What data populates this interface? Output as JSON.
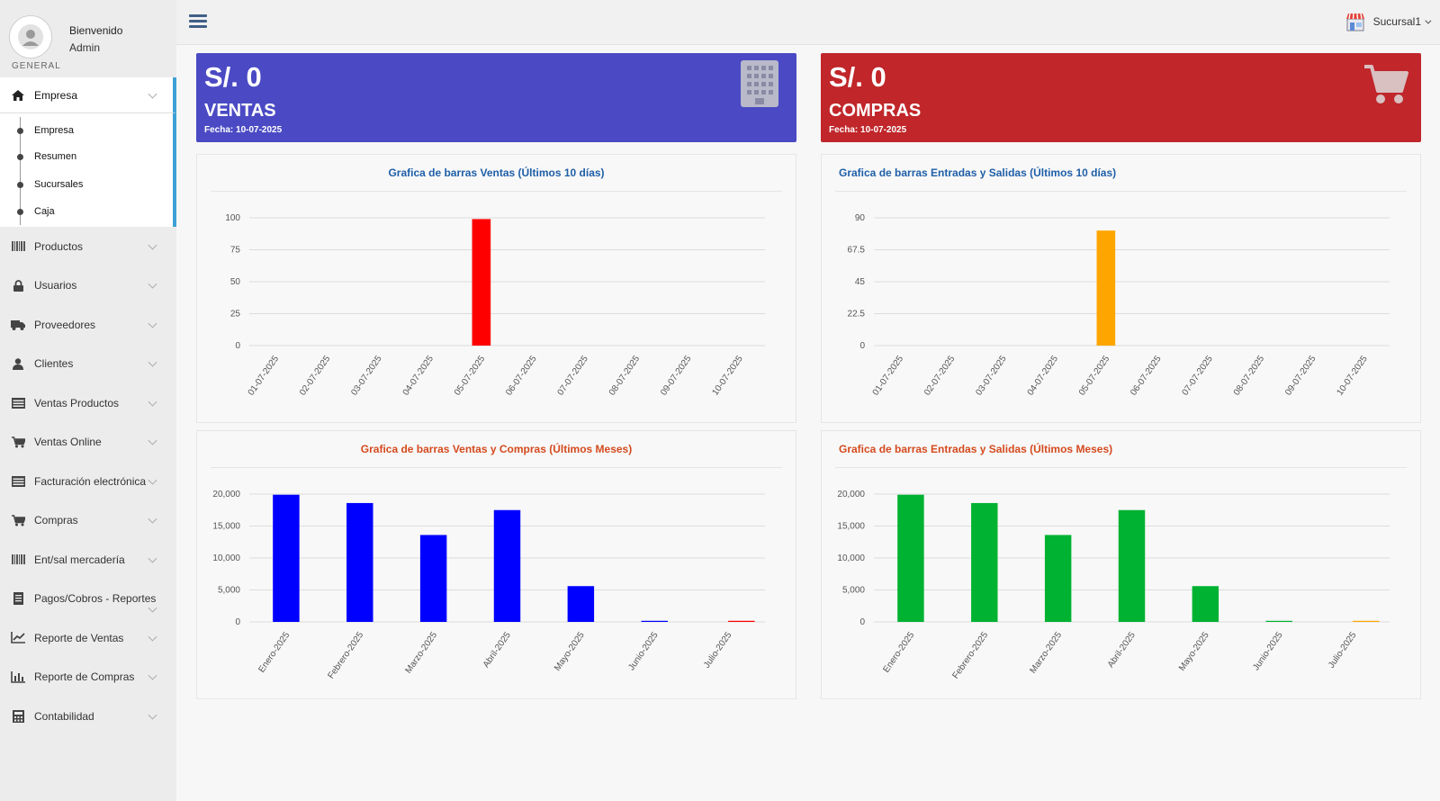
{
  "sidebar": {
    "welcome": "Bienvenido",
    "username": "Admin",
    "section_label": "GENERAL",
    "active_item": {
      "label": "Empresa",
      "icon": "home-icon"
    },
    "submenu": [
      "Empresa",
      "Resumen",
      "Sucursales",
      "Caja"
    ],
    "items": [
      {
        "label": "Productos",
        "icon": "barcode-icon"
      },
      {
        "label": "Usuarios",
        "icon": "lock-icon"
      },
      {
        "label": "Proveedores",
        "icon": "truck-icon"
      },
      {
        "label": "Clientes",
        "icon": "user-icon"
      },
      {
        "label": "Ventas Productos",
        "icon": "list-icon"
      },
      {
        "label": "Ventas Online",
        "icon": "cart-icon"
      },
      {
        "label": "Facturación electrónica",
        "icon": "list-icon"
      },
      {
        "label": "Compras",
        "icon": "cart-icon"
      },
      {
        "label": "Ent/sal mercadería",
        "icon": "barcode-icon"
      },
      {
        "label": "Pagos/Cobros - Reportes",
        "icon": "document-icon"
      },
      {
        "label": "Reporte de Ventas",
        "icon": "line-chart-icon"
      },
      {
        "label": "Reporte de Compras",
        "icon": "bar-chart-icon"
      },
      {
        "label": "Contabilidad",
        "icon": "calculator-icon"
      }
    ]
  },
  "header": {
    "branch": "Sucursal1",
    "branch_icon": "store-icon",
    "menu_icon": "hamburger-icon"
  },
  "stats": {
    "ventas": {
      "amount": "S/. 0",
      "label": "VENTAS",
      "date": "Fecha: 10-07-2025",
      "icon": "building-icon",
      "color": "#4b4ac4"
    },
    "compras": {
      "amount": "S/. 0",
      "label": "COMPRAS",
      "date": "Fecha: 10-07-2025",
      "icon": "cart-icon",
      "color": "#c0262a"
    }
  },
  "chart_data": [
    {
      "type": "bar",
      "title": "Grafica de barras Ventas (Últimos 10 días)",
      "categories": [
        "01-07-2025",
        "02-07-2025",
        "03-07-2025",
        "04-07-2025",
        "05-07-2025",
        "06-07-2025",
        "07-07-2025",
        "08-07-2025",
        "09-07-2025",
        "10-07-2025"
      ],
      "series": [
        {
          "values": [
            0,
            0,
            0,
            0,
            99,
            0,
            0,
            0,
            0,
            0
          ],
          "color": "#ff0000"
        }
      ],
      "ylim": [
        0,
        100
      ],
      "yticks": [
        "0",
        "25",
        "50",
        "75",
        "100"
      ],
      "grid": true
    },
    {
      "type": "bar",
      "title": "Grafica de barras Entradas y Salidas (Últimos 10 días)",
      "categories": [
        "01-07-2025",
        "02-07-2025",
        "03-07-2025",
        "04-07-2025",
        "05-07-2025",
        "06-07-2025",
        "07-07-2025",
        "08-07-2025",
        "09-07-2025",
        "10-07-2025"
      ],
      "series": [
        {
          "values": [
            0,
            0,
            0,
            0,
            81,
            0,
            0,
            0,
            0,
            0
          ],
          "color": "#ffa500"
        }
      ],
      "ylim": [
        0,
        90
      ],
      "yticks": [
        "0",
        "22.5",
        "45",
        "67.5",
        "90"
      ],
      "grid": true
    },
    {
      "type": "bar",
      "title": "Grafica de barras Ventas y Compras (Últimos Meses)",
      "categories": [
        "Enero-2025",
        "Febrero-2025",
        "Marzo-2025",
        "Abril-2025",
        "Mayo-2025",
        "Junio-2025",
        "Julio-2025"
      ],
      "series": [
        {
          "values": [
            19900,
            18600,
            13600,
            17500,
            5600,
            120,
            0
          ],
          "color": "#0000ff"
        },
        {
          "values": [
            0,
            0,
            0,
            0,
            0,
            0,
            100
          ],
          "color": "#ff0000"
        }
      ],
      "ylim": [
        0,
        20000
      ],
      "yticks": [
        "0",
        "5,000",
        "10,000",
        "15,000",
        "20,000"
      ],
      "grid": true
    },
    {
      "type": "bar",
      "title": "Grafica de barras Entradas y Salidas (Últimos Meses)",
      "categories": [
        "Enero-2025",
        "Febrero-2025",
        "Marzo-2025",
        "Abril-2025",
        "Mayo-2025",
        "Junio-2025",
        "Julio-2025"
      ],
      "series": [
        {
          "values": [
            19900,
            18600,
            13600,
            17500,
            5600,
            120,
            0
          ],
          "color": "#00b232"
        },
        {
          "values": [
            0,
            0,
            0,
            0,
            0,
            0,
            100
          ],
          "color": "#ffa500"
        }
      ],
      "ylim": [
        0,
        20000
      ],
      "yticks": [
        "0",
        "5,000",
        "10,000",
        "15,000",
        "20,000"
      ],
      "grid": true
    }
  ]
}
